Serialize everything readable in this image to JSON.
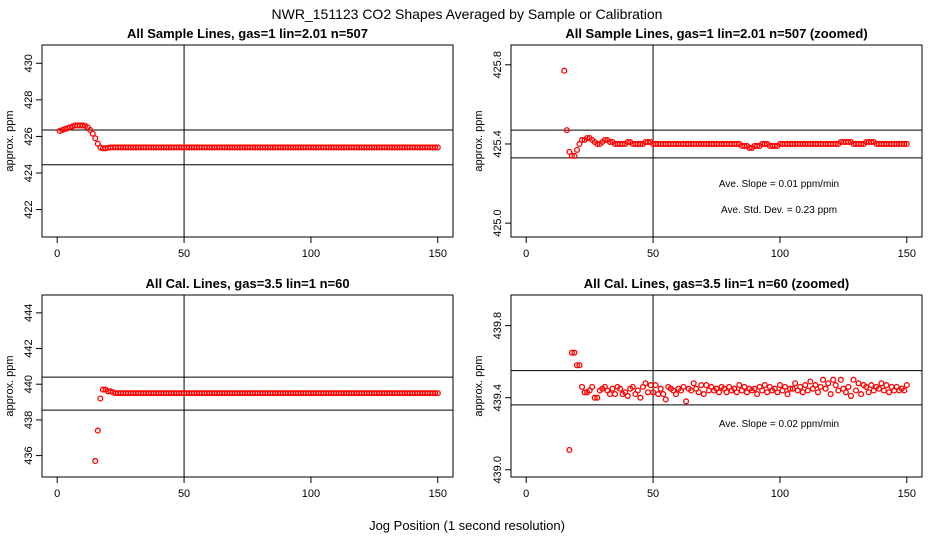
{
  "figure": {
    "title": "NWR_151123  CO2 Shapes Averaged by Sample or Calibration",
    "xlabel": "Jog Position (1 second resolution)"
  },
  "colors": {
    "points": "#ff0000",
    "lines": "#000000",
    "background": "#ffffff"
  },
  "chart_data": [
    {
      "type": "scatter",
      "title": "All Sample Lines, gas=1 lin=2.01 n=507",
      "ylabel": "approx. ppm",
      "xlim": [
        -6,
        156
      ],
      "ylim": [
        420.5,
        431.0
      ],
      "xticks": [
        0,
        50,
        100,
        150
      ],
      "yticks": [
        422,
        424,
        426,
        428,
        430
      ],
      "vline": 50,
      "hlines": [
        426.35,
        424.45
      ],
      "annotations": [],
      "series": [
        {
          "x_start": 1,
          "y": [
            426.3,
            426.35,
            426.4,
            426.45,
            426.5,
            426.55,
            426.6,
            426.6,
            426.6,
            426.6,
            426.58,
            426.5,
            426.35,
            426.15,
            425.9,
            425.6,
            425.4,
            425.35,
            425.35,
            425.38,
            425.4,
            425.4,
            425.4,
            425.4,
            425.4,
            425.4,
            425.4,
            425.4,
            425.4,
            425.4,
            425.4,
            425.4,
            425.4,
            425.4,
            425.4,
            425.4,
            425.4,
            425.4,
            425.4,
            425.4,
            425.4,
            425.4,
            425.4,
            425.4,
            425.4,
            425.4,
            425.4,
            425.4,
            425.4,
            425.4,
            425.4,
            425.4,
            425.4,
            425.4,
            425.4,
            425.4,
            425.4,
            425.4,
            425.4,
            425.4,
            425.4,
            425.4,
            425.4,
            425.4,
            425.4,
            425.4,
            425.4,
            425.4,
            425.4,
            425.4,
            425.4,
            425.4,
            425.4,
            425.4,
            425.4,
            425.4,
            425.4,
            425.4,
            425.4,
            425.4,
            425.4,
            425.4,
            425.4,
            425.4,
            425.4,
            425.4,
            425.4,
            425.4,
            425.4,
            425.4,
            425.4,
            425.4,
            425.4,
            425.4,
            425.4,
            425.4,
            425.4,
            425.4,
            425.4,
            425.4,
            425.4,
            425.4,
            425.4,
            425.4,
            425.4,
            425.4,
            425.4,
            425.4,
            425.4,
            425.4,
            425.4,
            425.4,
            425.4,
            425.4,
            425.4,
            425.4,
            425.4,
            425.4,
            425.4,
            425.4,
            425.4,
            425.4,
            425.4,
            425.4,
            425.4,
            425.4,
            425.4,
            425.4,
            425.4,
            425.4,
            425.4,
            425.4,
            425.4,
            425.4,
            425.4,
            425.4,
            425.4,
            425.4,
            425.4,
            425.4,
            425.4,
            425.4,
            425.4,
            425.4,
            425.4,
            425.4,
            425.4,
            425.4,
            425.4,
            425.4
          ]
        }
      ]
    },
    {
      "type": "scatter",
      "title": "All Sample Lines, gas=1 lin=2.01 n=507 (zoomed)",
      "ylabel": "approx. ppm",
      "xlim": [
        -6,
        156
      ],
      "ylim": [
        424.93,
        425.9
      ],
      "xticks": [
        0,
        50,
        100,
        150
      ],
      "yticks": [
        425.0,
        425.4,
        425.8
      ],
      "ytick_labels": [
        "425.0",
        "425.4",
        "425.8"
      ],
      "vline": 50,
      "hlines": [
        425.47,
        425.33
      ],
      "annotations": [
        "Ave. Slope =  0.01  ppm/min",
        "Ave. Std. Dev. =  0.23  ppm"
      ],
      "series": [
        {
          "x_start": 15,
          "y": [
            425.77,
            425.47,
            425.36,
            425.34,
            425.34,
            425.37,
            425.4,
            425.42,
            425.42,
            425.43,
            425.43,
            425.42,
            425.41,
            425.4,
            425.4,
            425.41,
            425.42,
            425.42,
            425.41,
            425.41,
            425.4,
            425.4,
            425.4,
            425.4,
            425.4,
            425.41,
            425.41,
            425.4,
            425.4,
            425.4,
            425.4,
            425.4,
            425.41,
            425.41,
            425.41,
            425.4,
            425.4,
            425.4,
            425.4,
            425.4,
            425.4,
            425.4,
            425.4,
            425.4,
            425.4,
            425.4,
            425.4,
            425.4,
            425.4,
            425.4,
            425.4,
            425.4,
            425.4,
            425.4,
            425.4,
            425.4,
            425.4,
            425.4,
            425.4,
            425.4,
            425.4,
            425.4,
            425.4,
            425.4,
            425.4,
            425.4,
            425.4,
            425.4,
            425.4,
            425.4,
            425.39,
            425.39,
            425.39,
            425.38,
            425.38,
            425.39,
            425.39,
            425.39,
            425.4,
            425.4,
            425.4,
            425.39,
            425.39,
            425.39,
            425.39,
            425.4,
            425.4,
            425.4,
            425.4,
            425.4,
            425.4,
            425.4,
            425.4,
            425.4,
            425.4,
            425.4,
            425.4,
            425.4,
            425.4,
            425.4,
            425.4,
            425.4,
            425.4,
            425.4,
            425.4,
            425.4,
            425.4,
            425.4,
            425.4,
            425.41,
            425.41,
            425.41,
            425.41,
            425.41,
            425.4,
            425.4,
            425.4,
            425.4,
            425.4,
            425.41,
            425.41,
            425.41,
            425.41,
            425.4,
            425.4,
            425.4,
            425.4,
            425.4,
            425.4,
            425.4,
            425.4,
            425.4,
            425.4,
            425.4,
            425.4,
            425.4
          ]
        }
      ]
    },
    {
      "type": "scatter",
      "title": "All Cal. Lines, gas=3.5 lin=1 n=60",
      "ylabel": "approx. ppm",
      "xlim": [
        -6,
        156
      ],
      "ylim": [
        434.8,
        445.0
      ],
      "xticks": [
        0,
        50,
        100,
        150
      ],
      "yticks": [
        436,
        438,
        440,
        442,
        444
      ],
      "vline": 50,
      "hlines": [
        440.4,
        438.55
      ],
      "annotations": [],
      "series": [
        {
          "x_start": 15,
          "y": [
            435.7,
            437.4,
            439.2,
            439.7,
            439.7,
            439.6,
            439.6,
            439.55,
            439.5,
            439.5,
            439.5,
            439.5,
            439.5,
            439.5,
            439.5,
            439.5,
            439.5,
            439.5,
            439.5,
            439.5,
            439.5,
            439.5,
            439.5,
            439.5,
            439.5,
            439.5,
            439.5,
            439.5,
            439.5,
            439.5,
            439.5,
            439.5,
            439.5,
            439.5,
            439.5,
            439.5,
            439.5,
            439.5,
            439.5,
            439.5,
            439.5,
            439.5,
            439.5,
            439.5,
            439.5,
            439.5,
            439.5,
            439.5,
            439.5,
            439.5,
            439.5,
            439.5,
            439.5,
            439.5,
            439.5,
            439.5,
            439.5,
            439.5,
            439.5,
            439.5,
            439.5,
            439.5,
            439.5,
            439.5,
            439.5,
            439.5,
            439.5,
            439.5,
            439.5,
            439.5,
            439.5,
            439.5,
            439.5,
            439.5,
            439.5,
            439.5,
            439.5,
            439.5,
            439.5,
            439.5,
            439.5,
            439.5,
            439.5,
            439.5,
            439.5,
            439.5,
            439.5,
            439.5,
            439.5,
            439.5,
            439.5,
            439.5,
            439.5,
            439.5,
            439.5,
            439.5,
            439.5,
            439.5,
            439.5,
            439.5,
            439.5,
            439.5,
            439.5,
            439.5,
            439.5,
            439.5,
            439.5,
            439.5,
            439.5,
            439.5,
            439.5,
            439.5,
            439.5,
            439.5,
            439.5,
            439.5,
            439.5,
            439.5,
            439.5,
            439.5,
            439.5,
            439.5,
            439.5,
            439.5,
            439.5,
            439.5,
            439.5,
            439.5,
            439.5,
            439.5,
            439.5,
            439.5,
            439.5,
            439.5,
            439.5,
            439.5
          ]
        }
      ]
    },
    {
      "type": "scatter",
      "title": "All Cal. Lines, gas=3.5 lin=1 n=60 (zoomed)",
      "ylabel": "approx. ppm",
      "xlim": [
        -6,
        156
      ],
      "ylim": [
        438.96,
        439.97
      ],
      "xticks": [
        0,
        50,
        100,
        150
      ],
      "yticks": [
        439.0,
        439.4,
        439.8
      ],
      "ytick_labels": [
        "439.0",
        "439.4",
        "439.8"
      ],
      "vline": 50,
      "hlines": [
        439.55,
        439.36
      ],
      "annotations": [
        "Ave. Slope =  0.02  ppm/min"
      ],
      "series": [
        {
          "x_start": 17,
          "y": [
            439.11,
            439.65,
            439.65,
            439.58,
            439.58,
            439.46,
            439.43,
            439.43,
            439.44,
            439.46,
            439.4,
            439.4,
            439.44,
            439.45,
            439.46,
            439.44,
            439.42,
            439.45,
            439.42,
            439.46,
            439.45,
            439.42,
            439.43,
            439.41,
            439.45,
            439.46,
            439.42,
            439.44,
            439.4,
            439.46,
            439.48,
            439.43,
            439.47,
            439.43,
            439.47,
            439.42,
            439.45,
            439.42,
            439.39,
            439.46,
            439.45,
            439.44,
            439.42,
            439.45,
            439.44,
            439.46,
            439.38,
            439.45,
            439.44,
            439.48,
            439.45,
            439.43,
            439.47,
            439.42,
            439.47,
            439.44,
            439.46,
            439.44,
            439.45,
            439.43,
            439.46,
            439.45,
            439.43,
            439.46,
            439.44,
            439.45,
            439.43,
            439.47,
            439.44,
            439.46,
            439.43,
            439.45,
            439.44,
            439.45,
            439.42,
            439.46,
            439.44,
            439.47,
            439.43,
            439.46,
            439.44,
            439.45,
            439.43,
            439.47,
            439.44,
            439.46,
            439.42,
            439.45,
            439.45,
            439.48,
            439.44,
            439.46,
            439.43,
            439.47,
            439.44,
            439.49,
            439.45,
            439.47,
            439.43,
            439.46,
            439.5,
            439.45,
            439.48,
            439.42,
            439.5,
            439.47,
            439.44,
            439.5,
            439.45,
            439.43,
            439.46,
            439.41,
            439.5,
            439.44,
            439.48,
            439.42,
            439.47,
            439.46,
            439.43,
            439.47,
            439.44,
            439.46,
            439.45,
            439.48,
            439.44,
            439.47,
            439.43,
            439.46,
            439.44,
            439.46,
            439.44,
            439.45,
            439.44,
            439.47
          ]
        }
      ]
    }
  ]
}
